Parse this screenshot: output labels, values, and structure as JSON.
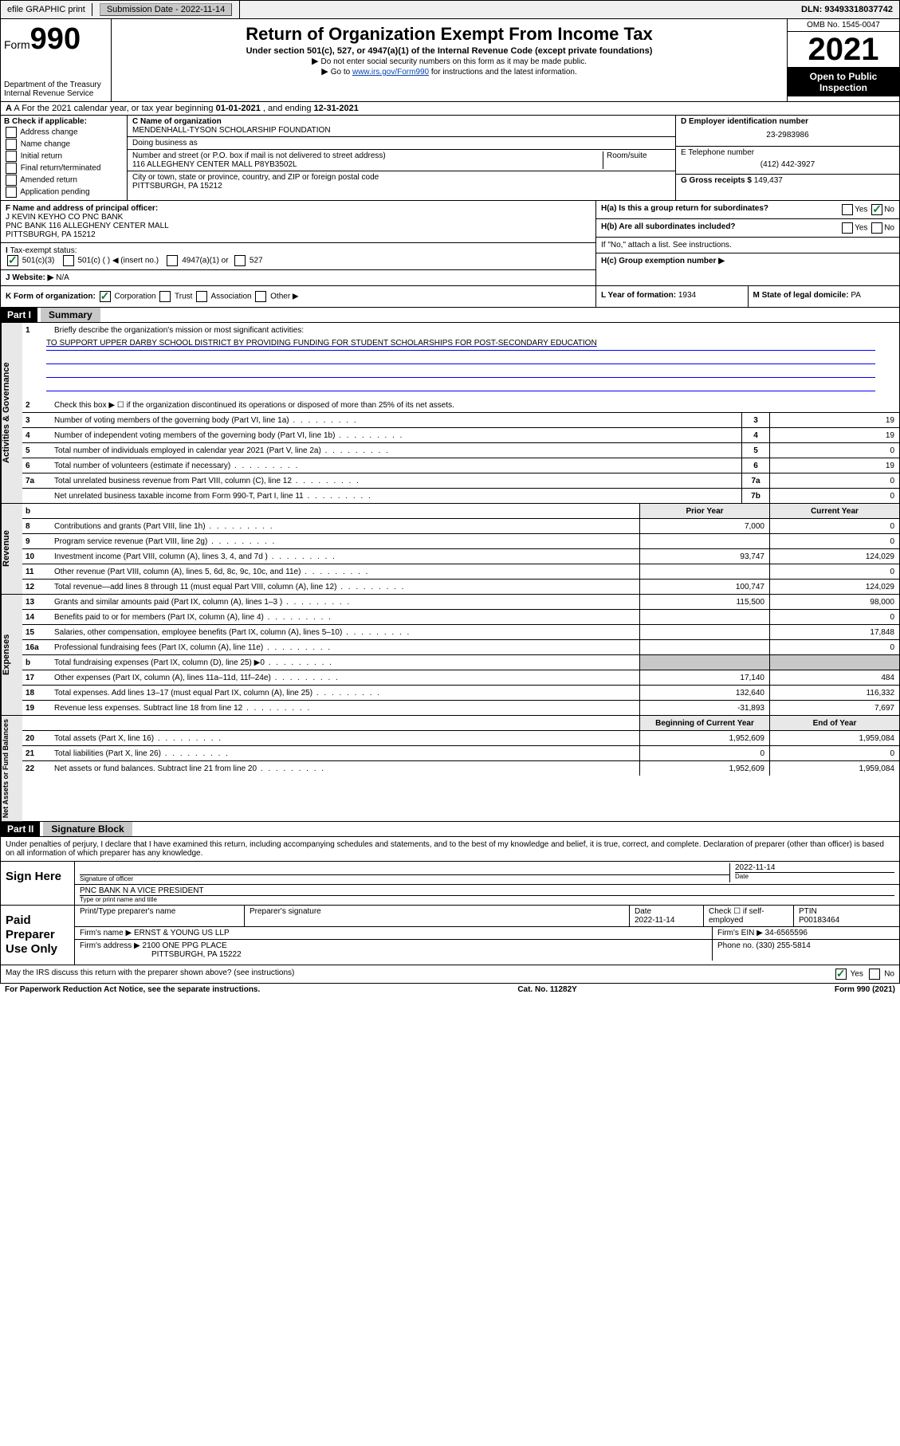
{
  "topbar": {
    "efile": "efile GRAPHIC print",
    "submission_label": "Submission Date - 2022-11-14",
    "dln": "DLN: 93493318037742"
  },
  "header": {
    "form_prefix": "Form",
    "form_number": "990",
    "dept": "Department of the Treasury Internal Revenue Service",
    "title": "Return of Organization Exempt From Income Tax",
    "subtitle": "Under section 501(c), 527, or 4947(a)(1) of the Internal Revenue Code (except private foundations)",
    "note1": "Do not enter social security numbers on this form as it may be made public.",
    "note2_a": "Go to ",
    "note2_link": "www.irs.gov/Form990",
    "note2_b": " for instructions and the latest information.",
    "omb": "OMB No. 1545-0047",
    "year": "2021",
    "inspection": "Open to Public Inspection"
  },
  "lineA": {
    "prefix": "A For the 2021 calendar year, or tax year beginning ",
    "begin": "01-01-2021",
    "mid": "  , and ending ",
    "end": "12-31-2021"
  },
  "colB": {
    "label": "B Check if applicable:",
    "items": [
      "Address change",
      "Name change",
      "Initial return",
      "Final return/terminated",
      "Amended return",
      "Application pending"
    ]
  },
  "colC": {
    "name_label": "C Name of organization",
    "name": "MENDENHALL-TYSON SCHOLARSHIP FOUNDATION",
    "dba_label": "Doing business as",
    "dba": "",
    "addr_label": "Number and street (or P.O. box if mail is not delivered to street address)",
    "room_label": "Room/suite",
    "addr": "116 ALLEGHENY CENTER MALL P8YB3502L",
    "city_label": "City or town, state or province, country, and ZIP or foreign postal code",
    "city": "PITTSBURGH, PA  15212"
  },
  "colDE": {
    "d_label": "D Employer identification number",
    "ein": "23-2983986",
    "e_label": "E Telephone number",
    "phone": "(412) 442-3927",
    "g_label": "G Gross receipts $",
    "gross": "149,437"
  },
  "rowF": {
    "f_label": "F  Name and address of principal officer:",
    "officer": "J KEVIN KEYHO CO PNC BANK",
    "officer2": "PNC BANK 116 ALLEGHENY CENTER MALL",
    "officer3": "PITTSBURGH, PA  15212",
    "ha_label": "H(a)  Is this a group return for subordinates?",
    "hb_label": "H(b)  Are all subordinates included?",
    "hb_note": "If \"No,\" attach a list. See instructions.",
    "hc_label": "H(c)  Group exemption number ▶",
    "yes": "Yes",
    "no": "No"
  },
  "rowI": {
    "label": "Tax-exempt status:",
    "c3": "501(c)(3)",
    "c": "501(c) (  ) ◀ (insert no.)",
    "a1": "4947(a)(1) or",
    "s527": "527"
  },
  "rowJ": {
    "label": "J   Website: ▶",
    "val": "N/A"
  },
  "rowK": {
    "label": "K Form of organization:",
    "corp": "Corporation",
    "trust": "Trust",
    "assoc": "Association",
    "other": "Other ▶",
    "l_label": "L Year of formation:",
    "l_val": "1934",
    "m_label": "M State of legal domicile:",
    "m_val": "PA"
  },
  "part1": {
    "header": "Part I",
    "title": "Summary",
    "line1_label": "Briefly describe the organization's mission or most significant activities:",
    "mission": "TO SUPPORT UPPER DARBY SCHOOL DISTRICT BY PROVIDING FUNDING FOR STUDENT SCHOLARSHIPS FOR POST-SECONDARY EDUCATION",
    "line2": "Check this box ▶ ☐  if the organization discontinued its operations or disposed of more than 25% of its net assets.",
    "lines_gov": [
      {
        "n": "3",
        "d": "Number of voting members of the governing body (Part VI, line 1a)",
        "box": "3",
        "v": "19"
      },
      {
        "n": "4",
        "d": "Number of independent voting members of the governing body (Part VI, line 1b)",
        "box": "4",
        "v": "19"
      },
      {
        "n": "5",
        "d": "Total number of individuals employed in calendar year 2021 (Part V, line 2a)",
        "box": "5",
        "v": "0"
      },
      {
        "n": "6",
        "d": "Total number of volunteers (estimate if necessary)",
        "box": "6",
        "v": "19"
      },
      {
        "n": "7a",
        "d": "Total unrelated business revenue from Part VIII, column (C), line 12",
        "box": "7a",
        "v": "0"
      },
      {
        "n": "",
        "d": "Net unrelated business taxable income from Form 990-T, Part I, line 11",
        "box": "7b",
        "v": "0"
      }
    ],
    "col_headers": {
      "prior": "Prior Year",
      "current": "Current Year",
      "boy": "Beginning of Current Year",
      "eoy": "End of Year"
    },
    "lines_rev": [
      {
        "n": "8",
        "d": "Contributions and grants (Part VIII, line 1h)",
        "p": "7,000",
        "c": "0"
      },
      {
        "n": "9",
        "d": "Program service revenue (Part VIII, line 2g)",
        "p": "",
        "c": "0"
      },
      {
        "n": "10",
        "d": "Investment income (Part VIII, column (A), lines 3, 4, and 7d )",
        "p": "93,747",
        "c": "124,029"
      },
      {
        "n": "11",
        "d": "Other revenue (Part VIII, column (A), lines 5, 6d, 8c, 9c, 10c, and 11e)",
        "p": "",
        "c": "0"
      },
      {
        "n": "12",
        "d": "Total revenue—add lines 8 through 11 (must equal Part VIII, column (A), line 12)",
        "p": "100,747",
        "c": "124,029"
      }
    ],
    "lines_exp": [
      {
        "n": "13",
        "d": "Grants and similar amounts paid (Part IX, column (A), lines 1–3 )",
        "p": "115,500",
        "c": "98,000"
      },
      {
        "n": "14",
        "d": "Benefits paid to or for members (Part IX, column (A), line 4)",
        "p": "",
        "c": "0"
      },
      {
        "n": "15",
        "d": "Salaries, other compensation, employee benefits (Part IX, column (A), lines 5–10)",
        "p": "",
        "c": "17,848"
      },
      {
        "n": "16a",
        "d": "Professional fundraising fees (Part IX, column (A), line 11e)",
        "p": "",
        "c": "0"
      },
      {
        "n": "b",
        "d": "Total fundraising expenses (Part IX, column (D), line 25) ▶0",
        "p": "SHADE",
        "c": "SHADE"
      },
      {
        "n": "17",
        "d": "Other expenses (Part IX, column (A), lines 11a–11d, 11f–24e)",
        "p": "17,140",
        "c": "484"
      },
      {
        "n": "18",
        "d": "Total expenses. Add lines 13–17 (must equal Part IX, column (A), line 25)",
        "p": "132,640",
        "c": "116,332"
      },
      {
        "n": "19",
        "d": "Revenue less expenses. Subtract line 18 from line 12",
        "p": "-31,893",
        "c": "7,697"
      }
    ],
    "lines_net": [
      {
        "n": "20",
        "d": "Total assets (Part X, line 16)",
        "p": "1,952,609",
        "c": "1,959,084"
      },
      {
        "n": "21",
        "d": "Total liabilities (Part X, line 26)",
        "p": "0",
        "c": "0"
      },
      {
        "n": "22",
        "d": "Net assets or fund balances. Subtract line 21 from line 20",
        "p": "1,952,609",
        "c": "1,959,084"
      }
    ],
    "side_gov": "Activities & Governance",
    "side_rev": "Revenue",
    "side_exp": "Expenses",
    "side_net": "Net Assets or Fund Balances"
  },
  "part2": {
    "header": "Part II",
    "title": "Signature Block",
    "intro": "Under penalties of perjury, I declare that I have examined this return, including accompanying schedules and statements, and to the best of my knowledge and belief, it is true, correct, and complete. Declaration of preparer (other than officer) is based on all information of which preparer has any knowledge.",
    "sign_here": "Sign Here",
    "sig_officer_label": "Signature of officer",
    "sig_date": "2022-11-14",
    "date_label": "Date",
    "name_title": "PNC BANK N A  VICE PRESIDENT",
    "name_label": "Type or print name and title",
    "paid": "Paid Preparer Use Only",
    "prep_name_label": "Print/Type preparer's name",
    "prep_sig_label": "Preparer's signature",
    "prep_date_label": "Date",
    "prep_date": "2022-11-14",
    "check_label": "Check ☐ if self-employed",
    "ptin_label": "PTIN",
    "ptin": "P00183464",
    "firm_name_label": "Firm's name      ▶",
    "firm_name": "ERNST & YOUNG US LLP",
    "firm_ein_label": "Firm's EIN ▶",
    "firm_ein": "34-6565596",
    "firm_addr_label": "Firm's address ▶",
    "firm_addr": "2100 ONE PPG PLACE",
    "firm_addr2": "PITTSBURGH, PA  15222",
    "phone_label": "Phone no.",
    "phone": "(330) 255-5814",
    "discuss": "May the IRS discuss this return with the preparer shown above? (see instructions)",
    "yes": "Yes",
    "no": "No"
  },
  "footer": {
    "left": "For Paperwork Reduction Act Notice, see the separate instructions.",
    "mid": "Cat. No. 11282Y",
    "right": "Form 990 (2021)"
  }
}
